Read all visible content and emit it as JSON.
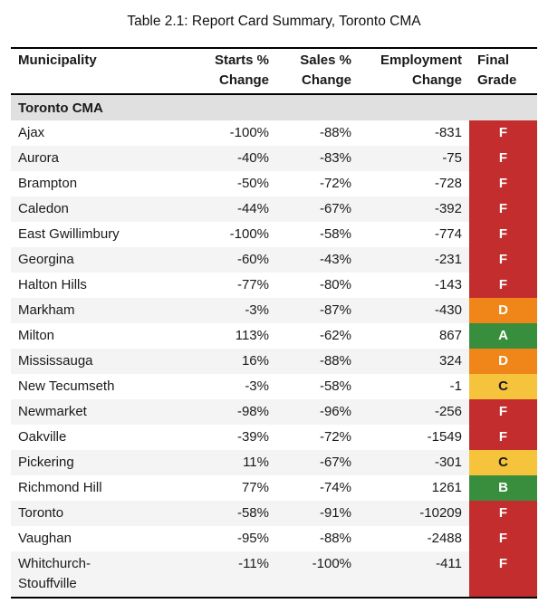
{
  "title": "Table 2.1: Report Card Summary, Toronto CMA",
  "table": {
    "columns": [
      "Municipality",
      "Starts %\nChange",
      "Sales %\nChange",
      "Employment\nChange",
      "Final\nGrade"
    ],
    "section_row": "Toronto CMA",
    "rows": [
      {
        "municipality": "Ajax",
        "starts": "-100%",
        "sales": "-88%",
        "employment": "-831",
        "grade": "F"
      },
      {
        "municipality": "Aurora",
        "starts": "-40%",
        "sales": "-83%",
        "employment": "-75",
        "grade": "F"
      },
      {
        "municipality": "Brampton",
        "starts": "-50%",
        "sales": "-72%",
        "employment": "-728",
        "grade": "F"
      },
      {
        "municipality": "Caledon",
        "starts": "-44%",
        "sales": "-67%",
        "employment": "-392",
        "grade": "F"
      },
      {
        "municipality": "East Gwillimbury",
        "starts": "-100%",
        "sales": "-58%",
        "employment": "-774",
        "grade": "F"
      },
      {
        "municipality": "Georgina",
        "starts": "-60%",
        "sales": "-43%",
        "employment": "-231",
        "grade": "F"
      },
      {
        "municipality": "Halton Hills",
        "starts": "-77%",
        "sales": "-80%",
        "employment": "-143",
        "grade": "F"
      },
      {
        "municipality": "Markham",
        "starts": "-3%",
        "sales": "-87%",
        "employment": "-430",
        "grade": "D"
      },
      {
        "municipality": "Milton",
        "starts": "113%",
        "sales": "-62%",
        "employment": "867",
        "grade": "A"
      },
      {
        "municipality": "Mississauga",
        "starts": "16%",
        "sales": "-88%",
        "employment": "324",
        "grade": "D"
      },
      {
        "municipality": "New Tecumseth",
        "starts": "-3%",
        "sales": "-58%",
        "employment": "-1",
        "grade": "C"
      },
      {
        "municipality": "Newmarket",
        "starts": "-98%",
        "sales": "-96%",
        "employment": "-256",
        "grade": "F"
      },
      {
        "municipality": "Oakville",
        "starts": "-39%",
        "sales": "-72%",
        "employment": "-1549",
        "grade": "F"
      },
      {
        "municipality": "Pickering",
        "starts": "11%",
        "sales": "-67%",
        "employment": "-301",
        "grade": "C"
      },
      {
        "municipality": "Richmond Hill",
        "starts": "77%",
        "sales": "-74%",
        "employment": "1261",
        "grade": "B"
      },
      {
        "municipality": "Toronto",
        "starts": "-58%",
        "sales": "-91%",
        "employment": "-10209",
        "grade": "F"
      },
      {
        "municipality": "Vaughan",
        "starts": "-95%",
        "sales": "-88%",
        "employment": "-2488",
        "grade": "F"
      },
      {
        "municipality": "Whitchurch-\nStouffville",
        "starts": "-11%",
        "sales": "-100%",
        "employment": "-411",
        "grade": "F"
      }
    ],
    "grade_colors": {
      "A": "#388E3C",
      "B": "#388E3C",
      "C": "#F5C33C",
      "D": "#F08519",
      "F": "#C32D2D"
    },
    "grade_text_colors": {
      "A": "#FFFFFF",
      "B": "#FFFFFF",
      "C": "#1A1A1A",
      "D": "#FFFFFF",
      "F": "#FFFFFF"
    }
  },
  "colors": {
    "section_bg": "#E0E0E0",
    "row_bg": "#FFFFFF",
    "row_alt_bg": "#F4F4F4",
    "rule": "#000000"
  }
}
